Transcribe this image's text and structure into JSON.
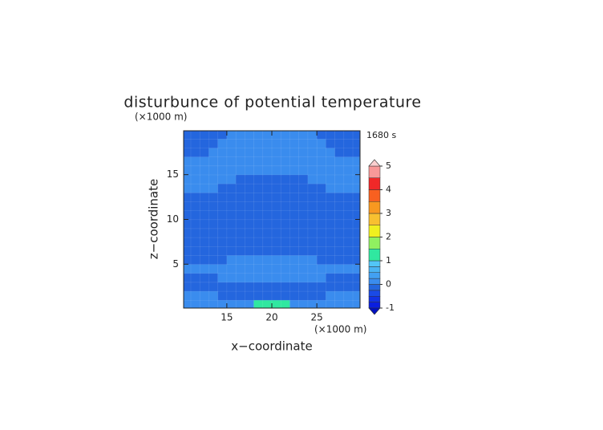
{
  "chart_data": {
    "type": "contour",
    "title": "disturbunce of potential temperature",
    "time_label": "1680 s",
    "x_label": "x−coordinate",
    "y_label": "z−coordinate",
    "x_unit": "(×1000 m)",
    "y_unit": "(×1000 m)",
    "xlim": [
      10.2,
      29.8
    ],
    "ylim": [
      0.1,
      19.9
    ],
    "xticks": [
      15,
      20,
      25
    ],
    "yticks": [
      5,
      10,
      15
    ],
    "x": [
      10.5,
      11.5,
      12.5,
      13.5,
      14.5,
      15.5,
      16.5,
      17.5,
      18.5,
      19.5,
      20.5,
      21.5,
      22.5,
      23.5,
      24.5,
      25.5,
      26.5,
      27.5,
      28.5,
      29.5
    ],
    "z": [
      0.5,
      1.5,
      2.5,
      3.5,
      4.5,
      5.5,
      6.5,
      7.5,
      8.5,
      9.5,
      10.5,
      11.5,
      12.5,
      13.5,
      14.5,
      15.5,
      16.5,
      17.5,
      18.5,
      19.5
    ],
    "values": [
      [
        0.1,
        0.1,
        0.1,
        0.1,
        0.1,
        0.1,
        0.1,
        0.1,
        1.1,
        1.1,
        1.1,
        1.1,
        0.1,
        0.1,
        0.1,
        0.1,
        0.1,
        0.1,
        0.1,
        0.1
      ],
      [
        0.05,
        0.05,
        0.05,
        0.05,
        -0.05,
        -0.05,
        -0.05,
        -0.05,
        -0.05,
        -0.05,
        -0.05,
        -0.05,
        -0.05,
        -0.05,
        -0.05,
        -0.05,
        0.05,
        0.05,
        0.05,
        0.05
      ],
      [
        -0.05,
        -0.05,
        -0.05,
        -0.05,
        -0.05,
        -0.05,
        -0.05,
        -0.05,
        -0.05,
        -0.05,
        -0.05,
        -0.05,
        -0.05,
        -0.05,
        -0.05,
        -0.05,
        -0.05,
        -0.05,
        -0.05,
        -0.05
      ],
      [
        -0.05,
        -0.05,
        -0.05,
        -0.05,
        0.05,
        0.05,
        0.05,
        0.05,
        0.05,
        0.05,
        0.05,
        0.05,
        0.05,
        0.05,
        0.05,
        0.05,
        -0.05,
        -0.05,
        -0.05,
        -0.05
      ],
      [
        0.05,
        0.05,
        0.05,
        0.05,
        0.05,
        0.05,
        0.05,
        0.05,
        0.05,
        0.05,
        0.05,
        0.05,
        0.05,
        0.05,
        0.05,
        0.05,
        0.05,
        0.05,
        0.05,
        0.05
      ],
      [
        -0.05,
        -0.05,
        -0.05,
        -0.05,
        -0.05,
        0.05,
        0.05,
        0.05,
        0.05,
        0.05,
        0.05,
        0.05,
        0.05,
        0.05,
        0.05,
        -0.05,
        -0.05,
        -0.05,
        -0.05,
        -0.05
      ],
      [
        -0.1,
        -0.1,
        -0.1,
        -0.1,
        -0.1,
        -0.1,
        -0.1,
        -0.1,
        -0.1,
        -0.1,
        -0.1,
        -0.1,
        -0.1,
        -0.1,
        -0.1,
        -0.1,
        -0.1,
        -0.1,
        -0.1,
        -0.1
      ],
      [
        -0.1,
        -0.1,
        -0.1,
        -0.1,
        -0.1,
        -0.1,
        -0.1,
        -0.1,
        -0.1,
        -0.1,
        -0.1,
        -0.1,
        -0.1,
        -0.1,
        -0.1,
        -0.1,
        -0.1,
        -0.1,
        -0.1,
        -0.1
      ],
      [
        -0.1,
        -0.1,
        -0.1,
        -0.1,
        -0.1,
        -0.1,
        -0.1,
        -0.1,
        -0.1,
        -0.1,
        -0.1,
        -0.1,
        -0.1,
        -0.1,
        -0.1,
        -0.1,
        -0.1,
        -0.1,
        -0.1,
        -0.1
      ],
      [
        -0.1,
        -0.1,
        -0.1,
        -0.1,
        -0.1,
        -0.1,
        -0.1,
        -0.1,
        -0.1,
        -0.1,
        -0.1,
        -0.1,
        -0.1,
        -0.1,
        -0.1,
        -0.1,
        -0.1,
        -0.1,
        -0.1,
        -0.1
      ],
      [
        -0.1,
        -0.1,
        -0.1,
        -0.1,
        -0.1,
        -0.1,
        -0.1,
        -0.1,
        -0.1,
        -0.1,
        -0.1,
        -0.1,
        -0.1,
        -0.1,
        -0.1,
        -0.1,
        -0.1,
        -0.1,
        -0.1,
        -0.1
      ],
      [
        -0.1,
        -0.1,
        -0.1,
        -0.1,
        -0.1,
        -0.1,
        -0.1,
        -0.1,
        -0.1,
        -0.1,
        -0.1,
        -0.1,
        -0.1,
        -0.1,
        -0.1,
        -0.1,
        -0.1,
        -0.1,
        -0.1,
        -0.1
      ],
      [
        -0.1,
        -0.1,
        -0.1,
        -0.1,
        -0.1,
        -0.1,
        -0.1,
        -0.1,
        -0.1,
        -0.1,
        -0.1,
        -0.1,
        -0.1,
        -0.1,
        -0.1,
        -0.1,
        -0.1,
        -0.1,
        -0.1,
        -0.1
      ],
      [
        0.05,
        0.05,
        0.05,
        0.05,
        -0.1,
        -0.1,
        -0.1,
        -0.1,
        -0.1,
        -0.1,
        -0.1,
        -0.1,
        -0.1,
        -0.1,
        -0.1,
        -0.1,
        0.05,
        0.05,
        0.05,
        0.05
      ],
      [
        0.05,
        0.05,
        0.05,
        0.05,
        0.05,
        0.05,
        -0.1,
        -0.1,
        -0.1,
        -0.1,
        -0.1,
        -0.1,
        -0.1,
        -0.1,
        0.05,
        0.05,
        0.05,
        0.05,
        0.05,
        0.05
      ],
      [
        0.05,
        0.05,
        0.05,
        0.05,
        0.05,
        0.05,
        0.05,
        0.05,
        0.05,
        0.05,
        0.05,
        0.05,
        0.05,
        0.05,
        0.05,
        0.05,
        0.05,
        0.05,
        0.05,
        0.05
      ],
      [
        0.05,
        0.05,
        0.05,
        0.05,
        0.05,
        0.05,
        0.05,
        0.05,
        0.05,
        0.05,
        0.05,
        0.05,
        0.05,
        0.05,
        0.05,
        0.05,
        0.05,
        0.05,
        0.05,
        0.05
      ],
      [
        -0.05,
        -0.05,
        -0.05,
        0.05,
        0.05,
        0.05,
        0.05,
        0.05,
        0.05,
        0.05,
        0.05,
        0.05,
        0.05,
        0.05,
        0.05,
        0.05,
        0.05,
        -0.05,
        -0.05,
        -0.05
      ],
      [
        -0.05,
        -0.05,
        -0.05,
        -0.05,
        0.05,
        0.05,
        0.05,
        0.05,
        0.05,
        0.05,
        0.05,
        0.05,
        0.05,
        0.05,
        0.05,
        0.05,
        -0.05,
        -0.05,
        -0.05,
        -0.05
      ],
      [
        -0.05,
        -0.05,
        -0.05,
        -0.05,
        -0.05,
        0.05,
        0.05,
        0.05,
        0.05,
        0.05,
        0.05,
        0.05,
        0.05,
        0.05,
        0.05,
        -0.05,
        -0.05,
        -0.05,
        -0.05,
        -0.05
      ]
    ],
    "colorbar": {
      "levels": [
        -1,
        -0.75,
        -0.5,
        -0.25,
        0,
        0.25,
        0.5,
        0.75,
        1,
        1.5,
        2,
        2.5,
        3,
        3.5,
        4,
        4.5,
        5
      ],
      "colors": [
        "#0a1ee0",
        "#1232e4",
        "#1a4ae6",
        "#2466de",
        "#3a8cee",
        "#42a0f2",
        "#4ab4f4",
        "#52c6f8",
        "#30e8a0",
        "#90f060",
        "#f0f020",
        "#f8c030",
        "#f89820",
        "#f86020",
        "#f02828",
        "#f89898"
      ],
      "under_color": "#0010c0",
      "over_color": "#fcd0d0",
      "ticks": [
        -1,
        0,
        1,
        2,
        3,
        4,
        5
      ]
    }
  }
}
